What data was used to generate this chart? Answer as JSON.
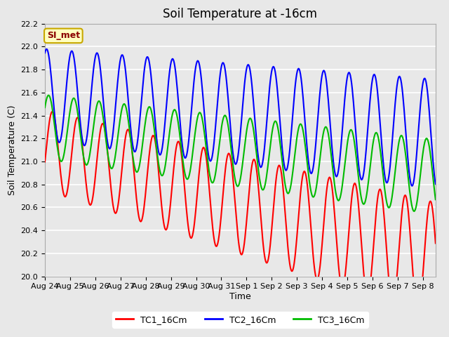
{
  "title": "Soil Temperature at -16cm",
  "xlabel": "Time",
  "ylabel": "Soil Temperature (C)",
  "ylim": [
    20.0,
    22.2
  ],
  "yticks": [
    20.0,
    20.2,
    20.4,
    20.6,
    20.8,
    21.0,
    21.2,
    21.4,
    21.6,
    21.8,
    22.0,
    22.2
  ],
  "bg_color": "#e8e8e8",
  "plot_bg_color": "#e8e8e8",
  "grid_color": "#ffffff",
  "annotation_text": "SI_met",
  "annotation_fg": "#8b0000",
  "annotation_bg": "#ffffc0",
  "annotation_border": "#c8a800",
  "line_colors": [
    "#ff0000",
    "#0000ff",
    "#00bb00"
  ],
  "line_labels": [
    "TC1_16Cm",
    "TC2_16Cm",
    "TC3_16Cm"
  ],
  "line_width": 1.5,
  "title_fontsize": 12,
  "label_fontsize": 9,
  "tick_fontsize": 8,
  "legend_fontsize": 9
}
